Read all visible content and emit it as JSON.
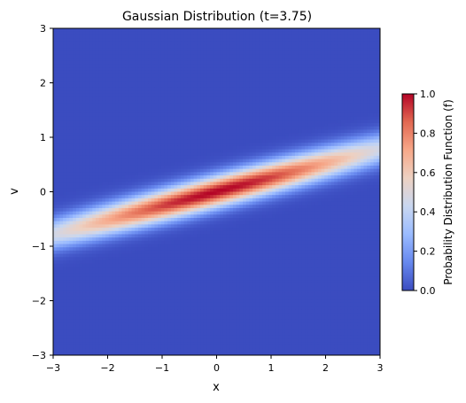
{
  "chart_data": {
    "type": "heatmap",
    "title": "Gaussian Distribution (t=3.75)",
    "xlabel": "x",
    "ylabel": "v",
    "xlim": [
      -3,
      3
    ],
    "ylim": [
      -3,
      3
    ],
    "xticks": [
      -3,
      -2,
      -1,
      0,
      1,
      2,
      3
    ],
    "yticks": [
      -3,
      -2,
      -1,
      0,
      1,
      2,
      3
    ],
    "xtick_labels": [
      "−3",
      "−2",
      "−1",
      "0",
      "1",
      "2",
      "3"
    ],
    "ytick_labels": [
      "−3",
      "−2",
      "−1",
      "0",
      "1",
      "2",
      "3"
    ],
    "grid_resolution": 100,
    "colormap": "coolwarm",
    "colormap_colors": [
      "#3b4cc0",
      "#6788ee",
      "#9abbff",
      "#c9d7f0",
      "#edd1c2",
      "#f7a889",
      "#e26952",
      "#b40426"
    ],
    "distribution": {
      "center_x": 0,
      "center_v": 0,
      "ridge_slope_dv_dx": 0.26,
      "ridge_width_v": 0.2,
      "ridge_length_x": 2.4,
      "peak_value": 1.0
    },
    "colorbar": {
      "label": "Probability Distribution Function (f)",
      "range": [
        0,
        1
      ],
      "ticks": [
        0,
        0.2,
        0.4,
        0.6,
        0.8,
        1.0
      ],
      "tick_labels": [
        "0.0",
        "0.2",
        "0.4",
        "0.6",
        "0.8",
        "1.0"
      ]
    }
  }
}
